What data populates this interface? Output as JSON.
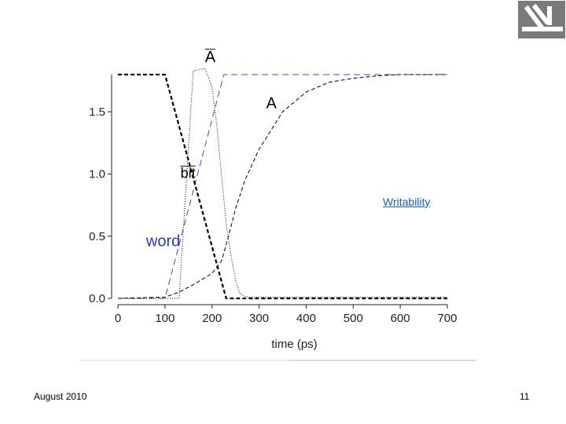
{
  "slide": {
    "footer_left": "August 2010",
    "page_number": "11",
    "link_text": "Writability",
    "logo_icon": "technion-logo-icon"
  },
  "chart_data": {
    "type": "line",
    "xlabel": "time (ps)",
    "ylabel": "",
    "xlim": [
      0,
      700
    ],
    "ylim": [
      0,
      1.8
    ],
    "x_ticks": [
      0,
      100,
      200,
      300,
      400,
      500,
      600,
      700
    ],
    "x_tick_labels": [
      "0",
      "100",
      "200",
      "300",
      "400",
      "500",
      "600",
      "700"
    ],
    "y_ticks": [
      0.0,
      0.5,
      1.0,
      1.5
    ],
    "y_tick_labels": [
      "0.0",
      "0.5",
      "1.0",
      "1.5"
    ],
    "grid": false,
    "series": [
      {
        "name": "word",
        "color": "#3b47c8",
        "dash": "8,5",
        "width": 1,
        "x": [
          0,
          100,
          225,
          700
        ],
        "y": [
          0,
          0,
          1.8,
          1.8
        ]
      },
      {
        "name": "bit",
        "color": "#000000",
        "dash": "5,3",
        "width": 2.2,
        "x": [
          0,
          100,
          230,
          700
        ],
        "y": [
          1.8,
          1.8,
          0,
          0
        ]
      },
      {
        "name": "A",
        "color": "#000000",
        "dash": "5,3",
        "width": 1,
        "x": [
          0,
          100,
          130,
          160,
          200,
          220,
          235,
          250,
          270,
          300,
          350,
          400,
          450,
          500,
          550,
          600,
          650,
          700
        ],
        "y": [
          0,
          0.01,
          0.05,
          0.11,
          0.2,
          0.3,
          0.5,
          0.72,
          0.95,
          1.2,
          1.5,
          1.66,
          1.74,
          1.77,
          1.79,
          1.8,
          1.8,
          1.8
        ]
      },
      {
        "name": "A",
        "color": "#000000",
        "dash": "1,2",
        "width": 1,
        "x": [
          0,
          100,
          130,
          160,
          185,
          200,
          210,
          220,
          230,
          240,
          250,
          258,
          266,
          280,
          300,
          350,
          700
        ],
        "y": [
          0,
          0,
          0,
          1.83,
          1.85,
          1.7,
          1.4,
          1.0,
          0.6,
          0.35,
          0.15,
          0.05,
          0.02,
          0.01,
          0.01,
          0.01,
          0.01
        ]
      }
    ],
    "annotations": [
      {
        "text": "A",
        "overline": true,
        "x": 185,
        "y": 1.9,
        "color": "#000000",
        "size": 20
      },
      {
        "text": "A",
        "overline": false,
        "x": 315,
        "y": 1.53,
        "color": "#000000",
        "size": 20
      },
      {
        "text": "bit",
        "overline": true,
        "x": 133,
        "y": 0.97,
        "color": "#000000",
        "size": 18
      },
      {
        "text": "word",
        "overline": false,
        "x": 60,
        "y": 0.42,
        "color": "#2d38b8",
        "size": 20
      }
    ]
  }
}
